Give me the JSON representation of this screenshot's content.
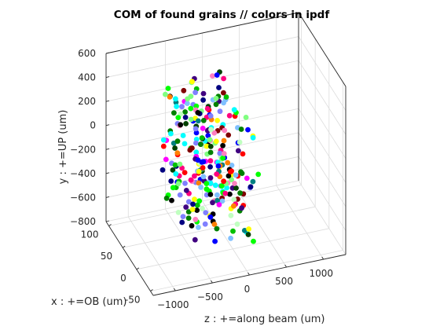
{
  "chart_data": {
    "type": "scatter3d",
    "title": "COM of found grains // colors in ipdf",
    "xlabel": "x : +=OB (um)",
    "ylabel": "y : +=UP (um)",
    "zlabel": "z : +=along beam (um)",
    "x_ticks": [
      "-50",
      "0",
      "50",
      "100"
    ],
    "y_ticks": [
      "−800",
      "−600",
      "−400",
      "−200",
      "0",
      "200",
      "400",
      "600"
    ],
    "z_ticks": [
      "−1000",
      "−500",
      "0",
      "500",
      "1000"
    ],
    "xlim": [
      -60,
      110
    ],
    "ylim": [
      -800,
      600
    ],
    "zlim": [
      -1300,
      1300
    ],
    "grid": true,
    "note": "marker colors encode grain orientation (inverse pole figure)"
  }
}
